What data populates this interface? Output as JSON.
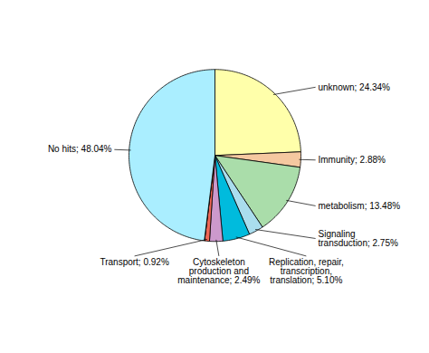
{
  "chart_data": {
    "type": "pie",
    "categories": [
      "unknown; 24.34%",
      "Immunity; 2.88%",
      "metabolism; 13.48%",
      "Signaling\ntransduction; 2.75%",
      "Replication, repair,\ntranscription,\ntranslation; 5.10%",
      "Cytoskeleton\nproduction and\nmaintenance; 2.49%",
      "Transport; 0.92%",
      null,
      "No hits; 48.04%"
    ],
    "values": [
      24.34,
      2.88,
      13.48,
      2.75,
      5.1,
      2.49,
      0.92,
      0.05,
      48.04
    ],
    "colors": [
      "#FFFFAA",
      "#F5C8A0",
      "#AADDAA",
      "#AADDEE",
      "#00BBDD",
      "#CC99CC",
      "#EE6655",
      "#88BB88",
      "#AAEEFF"
    ]
  }
}
